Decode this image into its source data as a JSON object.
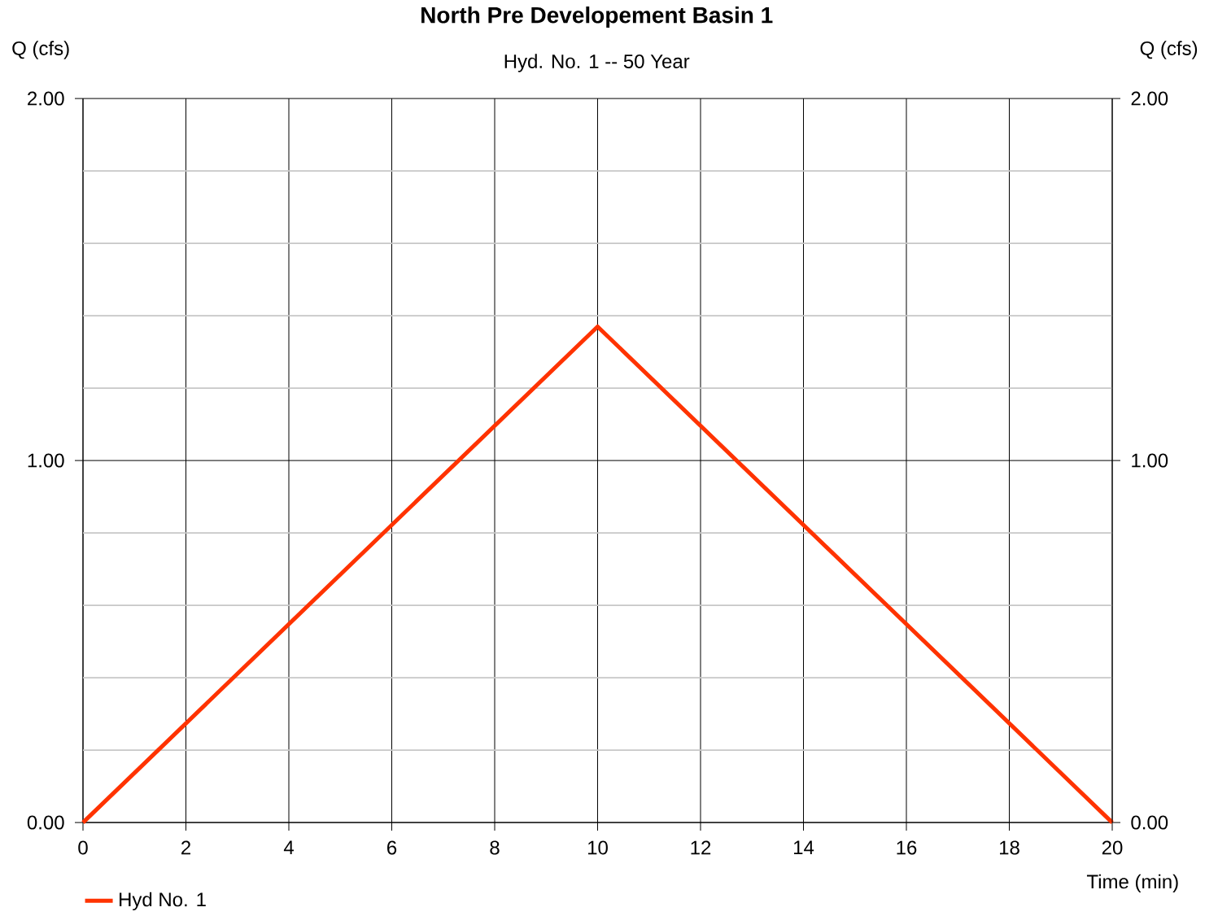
{
  "chart_data": {
    "type": "line",
    "title": "North Pre Developement Basin 1",
    "subtitle": "Hyd. No. 1 -- 50 Year",
    "xlabel": "Time (min)",
    "ylabel": "Q (cfs)",
    "y2label": "Q (cfs)",
    "x": [
      0,
      10,
      20
    ],
    "series": [
      {
        "name": "Hyd No. 1",
        "color": "#ff3300",
        "values": [
          0,
          1.37,
          0
        ]
      }
    ],
    "xlim": [
      0,
      20
    ],
    "xticks": [
      0,
      2,
      4,
      6,
      8,
      10,
      12,
      14,
      16,
      18,
      20
    ],
    "ylim": [
      0,
      2
    ],
    "yticks": [
      {
        "value": 0,
        "label": "0.00"
      },
      {
        "value": 0.2,
        "label": null
      },
      {
        "value": 0.4,
        "label": null
      },
      {
        "value": 0.6,
        "label": null
      },
      {
        "value": 0.8,
        "label": null
      },
      {
        "value": 1,
        "label": "1.00"
      },
      {
        "value": 1.2,
        "label": null
      },
      {
        "value": 1.4,
        "label": null
      },
      {
        "value": 1.6,
        "label": null
      },
      {
        "value": 1.8,
        "label": null
      },
      {
        "value": 2,
        "label": "2.00"
      }
    ],
    "y2lim": [
      0,
      2
    ],
    "y2ticks": [
      {
        "value": 0,
        "label": "0.00"
      },
      {
        "value": 1,
        "label": "1.00"
      },
      {
        "value": 2,
        "label": "2.00"
      }
    ],
    "grid": true,
    "legend": "bottom left",
    "marker": "none",
    "line_style": "solid"
  }
}
